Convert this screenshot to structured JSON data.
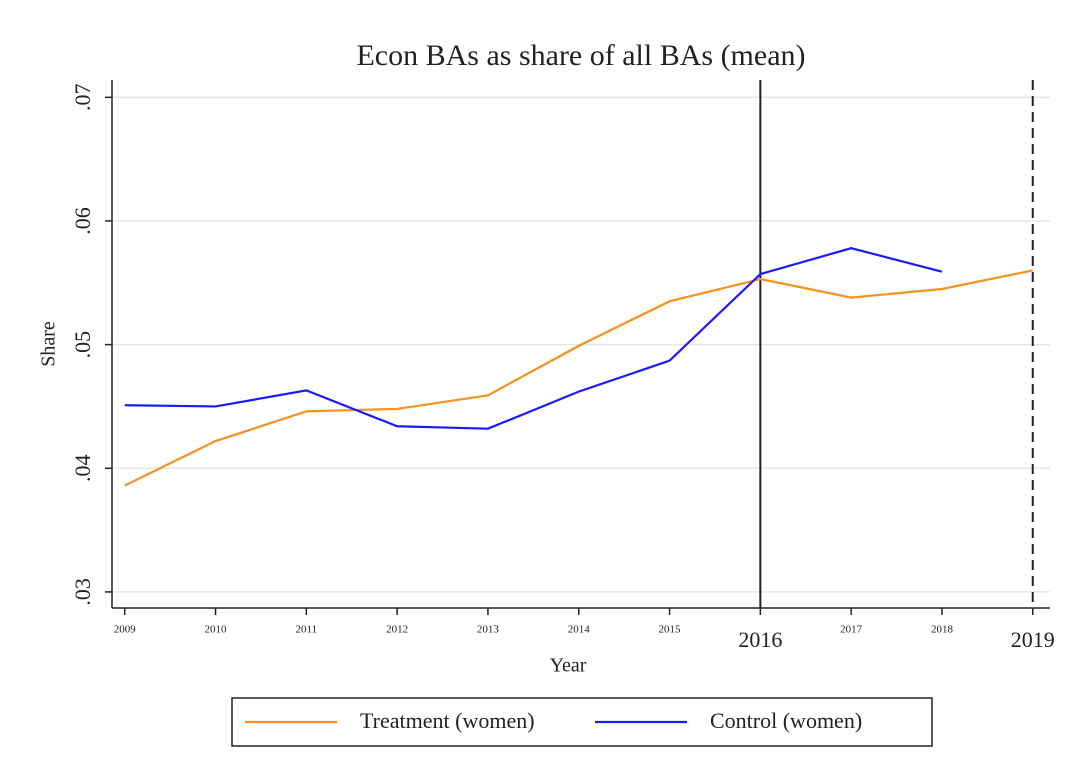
{
  "chart_data": {
    "type": "line",
    "title": "Econ BAs as share of all BAs (mean)",
    "x_label": "Year",
    "y_label": "Share",
    "x": [
      2009,
      2010,
      2011,
      2012,
      2013,
      2014,
      2015,
      2016,
      2017,
      2018,
      2019
    ],
    "series": [
      {
        "name": "Treatment (women)",
        "color": "#f5921e",
        "values": [
          0.0386,
          0.0422,
          0.0446,
          0.0448,
          0.0459,
          0.0499,
          0.0535,
          0.0553,
          0.0538,
          0.0545,
          0.056
        ]
      },
      {
        "name": "Control (women)",
        "color": "#1a1aff",
        "values": [
          0.0451,
          0.045,
          0.0463,
          0.0434,
          0.0432,
          0.0462,
          0.0487,
          0.0557,
          0.0578,
          0.0559,
          null
        ]
      }
    ],
    "xlim": [
      2008.86,
      2019.19
    ],
    "xticks": [
      2009,
      2010,
      2011,
      2012,
      2013,
      2014,
      2015,
      2016,
      2017,
      2018,
      2019
    ],
    "ylim": [
      0.0287,
      0.0714
    ],
    "yticks": [
      {
        "value": 0.03,
        "label": ".03"
      },
      {
        "value": 0.04,
        "label": ".04"
      },
      {
        "value": 0.05,
        "label": ".05"
      },
      {
        "value": 0.06,
        "label": ".06"
      },
      {
        "value": 0.07,
        "label": ".07"
      }
    ],
    "grid": true,
    "vlines": [
      {
        "x": 2016,
        "style": "solid"
      },
      {
        "x": 2019,
        "style": "dashed"
      }
    ],
    "legend": "bottom"
  }
}
